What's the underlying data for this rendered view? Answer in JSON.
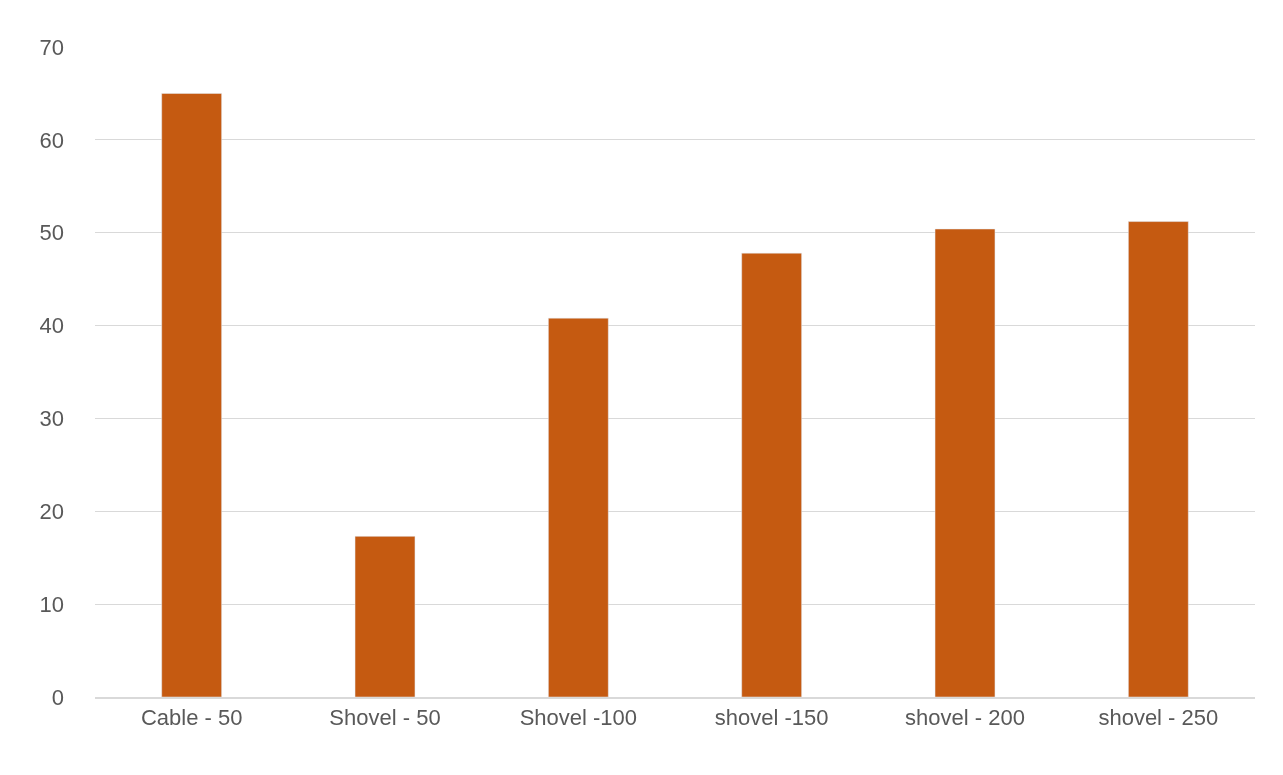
{
  "chart_data": {
    "type": "bar",
    "categories": [
      "Cable - 50",
      "Shovel - 50",
      "Shovel -100",
      "shovel -150",
      "shovel - 200",
      "shovel - 250"
    ],
    "values": [
      65.0,
      17.3,
      40.8,
      47.8,
      50.4,
      51.2
    ],
    "color": "#c55a11",
    "ylim": [
      0,
      70
    ],
    "yticks": [
      0,
      10,
      20,
      30,
      40,
      50,
      60,
      70
    ],
    "grid": "y"
  }
}
